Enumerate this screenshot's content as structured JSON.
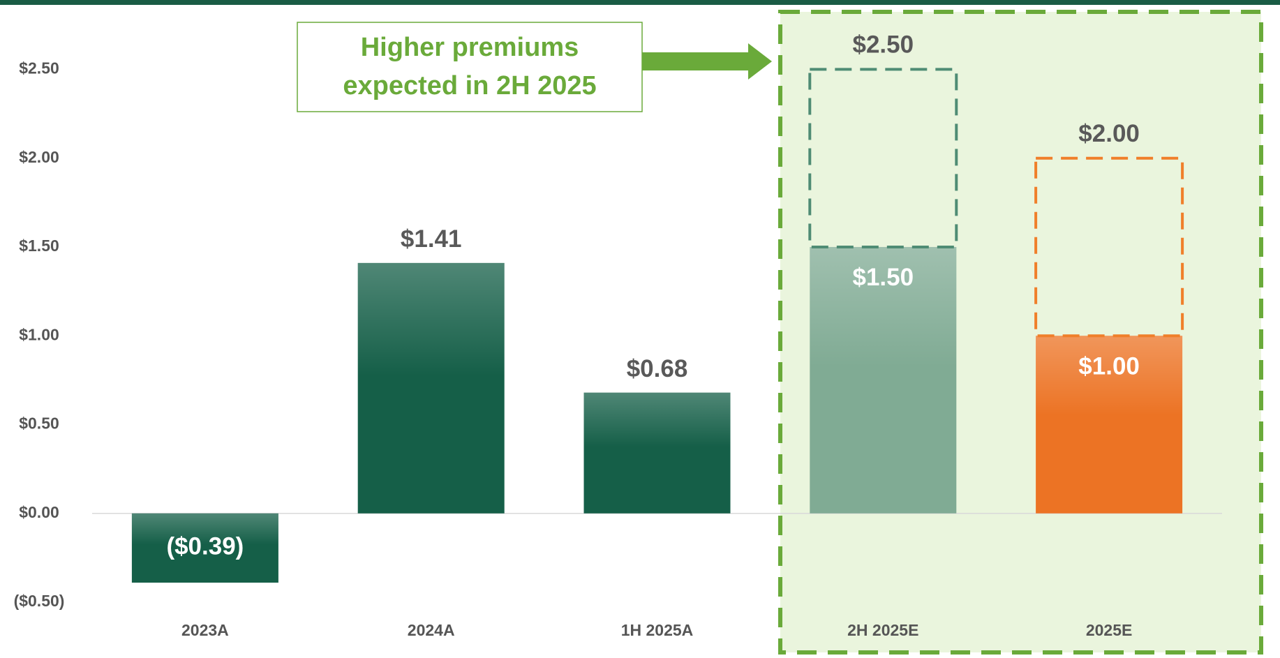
{
  "chart_data": {
    "type": "bar",
    "categories": [
      "2023A",
      "2024A",
      "1H 2025A",
      "2H 2025E",
      "2025E"
    ],
    "values": [
      -0.39,
      1.41,
      0.68,
      1.5,
      1.0
    ],
    "value_labels": [
      "($0.39)",
      "$1.41",
      "$0.68",
      "$1.50",
      "$1.00"
    ],
    "colors": [
      "#155f48",
      "#155f48",
      "#155f48",
      "#80ab94",
      "#ec7324"
    ],
    "range_high": [
      null,
      null,
      null,
      2.5,
      2.0
    ],
    "range_high_labels": [
      null,
      null,
      null,
      "$2.50",
      "$2.00"
    ],
    "range_colors": [
      null,
      null,
      null,
      "#4f8c74",
      "#f07f2a"
    ],
    "ylim": [
      -0.5,
      2.75
    ],
    "yticks": [
      {
        "value": -0.5,
        "label": "($0.50)"
      },
      {
        "value": 0,
        "label": "$0.00"
      },
      {
        "value": 0.5,
        "label": "$0.50"
      },
      {
        "value": 1,
        "label": "$1.00"
      },
      {
        "value": 1.5,
        "label": "$1.50"
      },
      {
        "value": 2,
        "label": "$2.00"
      },
      {
        "value": 2.5,
        "label": "$2.50"
      }
    ],
    "annotation": [
      "Higher premiums",
      "expected in 2H 2025"
    ]
  }
}
